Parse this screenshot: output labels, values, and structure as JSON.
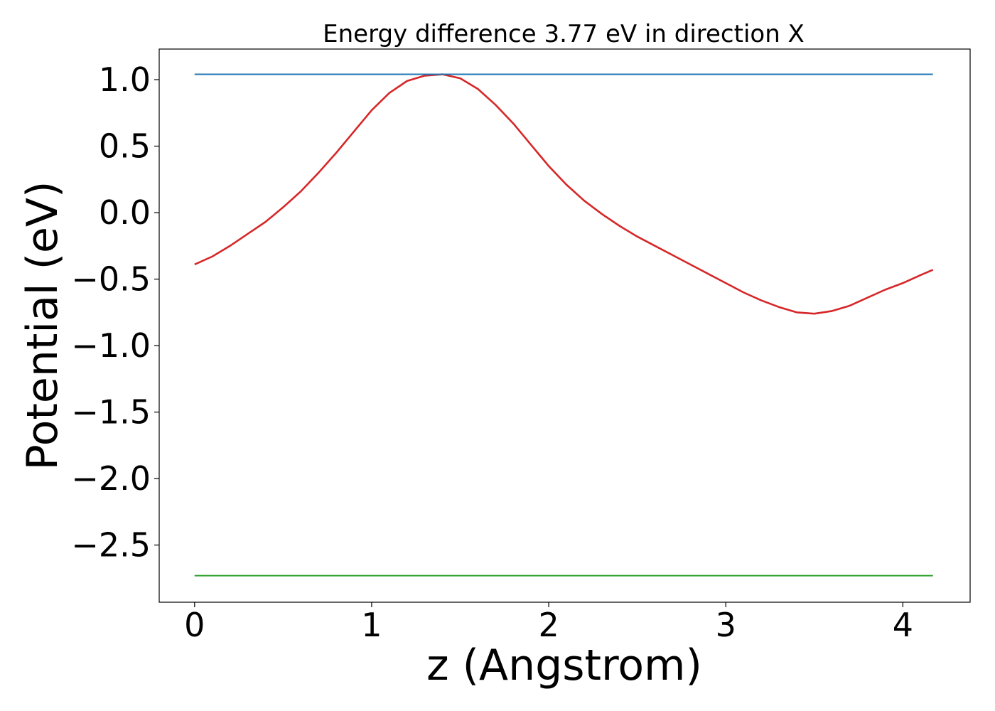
{
  "chart_data": {
    "type": "line",
    "title": "Energy difference 3.77 eV in direction X",
    "xlabel": "z (Angstrom)",
    "ylabel": "Potential (eV)",
    "xlim": [
      -0.2,
      4.38
    ],
    "ylim": [
      -2.93,
      1.23
    ],
    "xticks": [
      0,
      1,
      2,
      3,
      4
    ],
    "xtick_labels": [
      "0",
      "1",
      "2",
      "3",
      "4"
    ],
    "yticks": [
      1.0,
      0.5,
      0.0,
      -0.5,
      -1.0,
      -1.5,
      -2.0,
      -2.5
    ],
    "ytick_labels": [
      "1.0",
      "0.5",
      "0.0",
      "−0.5",
      "−1.0",
      "−1.5",
      "−2.0",
      "−2.5"
    ],
    "grid": false,
    "legend": "none",
    "series": [
      {
        "color": "#d62728",
        "x": [
          0.0,
          0.1,
          0.2,
          0.3,
          0.4,
          0.5,
          0.6,
          0.7,
          0.8,
          0.9,
          1.0,
          1.1,
          1.2,
          1.3,
          1.4,
          1.5,
          1.6,
          1.7,
          1.8,
          1.9,
          2.0,
          2.1,
          2.2,
          2.3,
          2.4,
          2.5,
          2.6,
          2.7,
          2.8,
          2.9,
          3.0,
          3.1,
          3.2,
          3.3,
          3.4,
          3.5,
          3.6,
          3.7,
          3.8,
          3.9,
          4.0,
          4.1,
          4.17
        ],
        "y": [
          -0.39,
          -0.33,
          -0.25,
          -0.16,
          -0.07,
          0.04,
          0.16,
          0.3,
          0.45,
          0.61,
          0.77,
          0.9,
          0.99,
          1.03,
          1.04,
          1.01,
          0.93,
          0.81,
          0.67,
          0.51,
          0.35,
          0.21,
          0.09,
          -0.01,
          -0.1,
          -0.18,
          -0.25,
          -0.32,
          -0.39,
          -0.46,
          -0.53,
          -0.6,
          -0.66,
          -0.71,
          -0.75,
          -0.76,
          -0.74,
          -0.7,
          -0.64,
          -0.58,
          -0.53,
          -0.47,
          -0.43
        ]
      },
      {
        "color": "#1f77b4",
        "x": [
          0.0,
          4.17
        ],
        "y": [
          1.04,
          1.04
        ]
      },
      {
        "color": "#2ca02c",
        "x": [
          0.0,
          4.17
        ],
        "y": [
          -2.73,
          -2.73
        ]
      }
    ]
  }
}
